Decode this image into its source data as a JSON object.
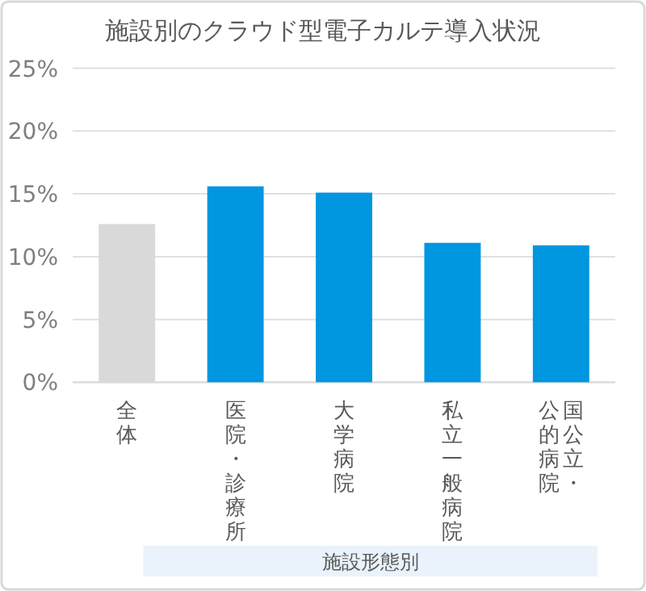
{
  "chart_data": {
    "type": "bar",
    "title": "施設別のクラウド型電子カルテ導入状況",
    "categories": [
      "全体",
      "医院・診療所",
      "大学病院",
      "私立一般病院",
      "国公立・公的病院"
    ],
    "values": [
      12.6,
      15.6,
      15.1,
      11.1,
      10.9
    ],
    "colors": [
      "#d9d9d9",
      "#0096e0",
      "#0096e0",
      "#0096e0",
      "#0096e0"
    ],
    "annotations": [
      "施設形態別"
    ],
    "ylim": [
      0,
      25
    ],
    "yticks": [
      {
        "value": 0,
        "label": "0%"
      },
      {
        "value": 5,
        "label": "5%"
      },
      {
        "value": 10,
        "label": "10%"
      },
      {
        "value": 15,
        "label": "15%"
      },
      {
        "value": 20,
        "label": "20%"
      },
      {
        "value": 25,
        "label": "25%"
      }
    ],
    "grid": "y"
  }
}
